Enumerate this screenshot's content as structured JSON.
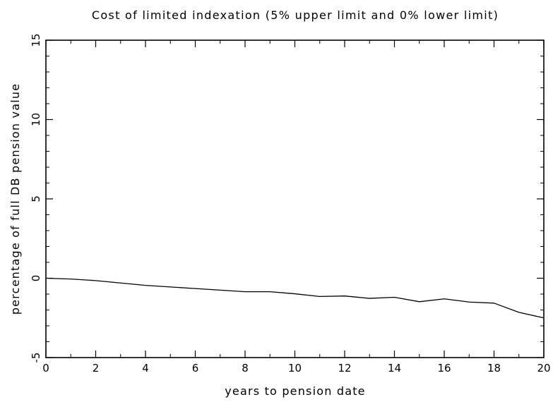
{
  "chart_data": {
    "type": "line",
    "title": "Cost of limited indexation (5% upper limit and 0% lower limit)",
    "xlabel": "years to pension date",
    "ylabel": "percentage of full DB pension value",
    "xlim": [
      0,
      20
    ],
    "ylim": [
      -5,
      15
    ],
    "xticks": [
      0,
      2,
      4,
      6,
      8,
      10,
      12,
      14,
      16,
      18,
      20
    ],
    "yticks": [
      -5,
      0,
      5,
      10,
      15
    ],
    "grid": false,
    "x": [
      0,
      1,
      2,
      3,
      4,
      5,
      6,
      7,
      8,
      9,
      10,
      11,
      12,
      13,
      14,
      15,
      16,
      17,
      18,
      19,
      20
    ],
    "series": [
      {
        "values": [
          0.0,
          -0.05,
          -0.15,
          -0.3,
          -0.45,
          -0.55,
          -0.65,
          -0.75,
          -0.85,
          -0.85,
          -0.98,
          -1.15,
          -1.12,
          -1.27,
          -1.2,
          -1.48,
          -1.3,
          -1.5,
          -1.57,
          -2.15,
          -2.5
        ],
        "color": "#000000"
      }
    ]
  }
}
